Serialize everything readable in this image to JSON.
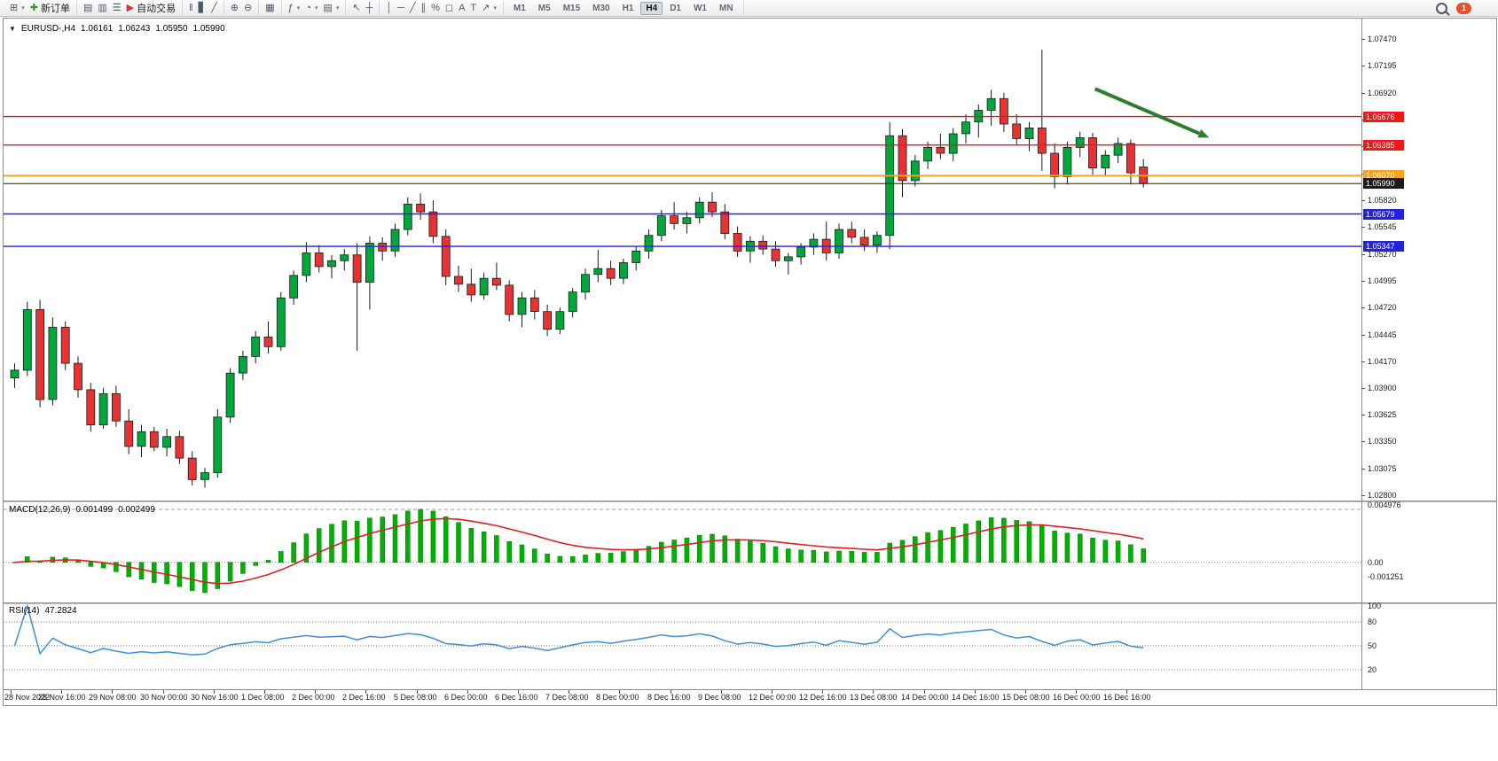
{
  "icons": {
    "expand_caret": "▼"
  },
  "header": {
    "symbol_period": "EURUSD-,H4",
    "open": "1.06161",
    "high": "1.06243",
    "low": "1.05950",
    "close": "1.05990"
  },
  "toolbar": {
    "groups": [
      {
        "name": "chart-group",
        "buttons": [
          {
            "name": "new-chart-button",
            "glyph": "⊞",
            "caret": true
          },
          {
            "name": "new-order-button",
            "glyph": "✚",
            "glyph_color": "#2a9d2a",
            "label": "新订单"
          }
        ]
      },
      {
        "name": "panels-group",
        "buttons": [
          {
            "name": "market-watch-button",
            "glyph": "▤"
          },
          {
            "name": "data-window-button",
            "glyph": "▥"
          },
          {
            "name": "navigator-button",
            "glyph": "☰"
          },
          {
            "name": "auto-trading-button",
            "glyph": "▶",
            "glyph_color": "#cc3a3a",
            "label": "自动交易"
          }
        ]
      },
      {
        "name": "chart-type-group",
        "buttons": [
          {
            "name": "ohlc-bars-button",
            "glyph": "‖"
          },
          {
            "name": "candlestick-button",
            "glyph": "▋"
          },
          {
            "name": "line-chart-button",
            "glyph": "╱"
          }
        ]
      },
      {
        "name": "zoom-group",
        "buttons": [
          {
            "name": "zoom-in-button",
            "glyph": "⊕"
          },
          {
            "name": "zoom-out-button",
            "glyph": "⊖"
          }
        ]
      },
      {
        "name": "window-group",
        "buttons": [
          {
            "name": "tile-windows-button",
            "glyph": "▦"
          }
        ]
      },
      {
        "name": "insert-group",
        "buttons": [
          {
            "name": "indicators-button",
            "glyph": "ƒ",
            "caret": true
          },
          {
            "name": "periods-button",
            "glyph": "◔",
            "caret": true
          },
          {
            "name": "templates-button",
            "glyph": "▤",
            "caret": true
          }
        ]
      },
      {
        "name": "pointer-group",
        "buttons": [
          {
            "name": "cursor-button",
            "glyph": "↖"
          },
          {
            "name": "crosshair-button",
            "glyph": "┼"
          }
        ]
      },
      {
        "name": "objects-group",
        "buttons": [
          {
            "name": "vertical-line-button",
            "glyph": "│"
          },
          {
            "name": "horizontal-line-button",
            "glyph": "─"
          },
          {
            "name": "trendline-button",
            "glyph": "╱"
          },
          {
            "name": "channel-button",
            "glyph": "∥"
          },
          {
            "name": "fibonacci-button",
            "glyph": "%"
          },
          {
            "name": "shapes-button",
            "glyph": "◻"
          },
          {
            "name": "text-button",
            "glyph": "A"
          },
          {
            "name": "text-label-button",
            "glyph": "T"
          },
          {
            "name": "arrows-button",
            "glyph": "↗",
            "caret": true
          }
        ]
      },
      {
        "name": "timeframe-group",
        "buttons": [
          {
            "name": "timeframe-m1-button",
            "label": "M1"
          },
          {
            "name": "timeframe-m5-button",
            "label": "M5"
          },
          {
            "name": "timeframe-m15-button",
            "label": "M15"
          },
          {
            "name": "timeframe-m30-button",
            "label": "M30"
          },
          {
            "name": "timeframe-h1-button",
            "label": "H1"
          },
          {
            "name": "timeframe-h4-button",
            "label": "H4",
            "active": true
          },
          {
            "name": "timeframe-d1-button",
            "label": "D1"
          },
          {
            "name": "timeframe-w1-button",
            "label": "W1"
          },
          {
            "name": "timeframe-mn-button",
            "label": "MN"
          }
        ]
      }
    ],
    "right": [
      {
        "name": "search-icon",
        "type": "magnifier"
      },
      {
        "name": "notification-badge",
        "type": "badge",
        "label": "1"
      }
    ]
  },
  "chart_data": {
    "type": "candlestick",
    "title": "EURUSD-,H4",
    "colors": {
      "bull": "#00a73c",
      "bear": "#e43434",
      "outline": "#1a1a1a",
      "macd_hist": "#00b200",
      "macd_signal": "#e02020",
      "rsi": "#3e8ede",
      "background": "#ffffff"
    },
    "price_axis_labels": [
      "1.07470",
      "1.07195",
      "1.06920",
      "1.06645",
      "1.06370",
      "1.06095",
      "1.05820",
      "1.05545",
      "1.05270",
      "1.04995",
      "1.04720",
      "1.04445",
      "1.04170",
      "1.03900",
      "1.03625",
      "1.03350",
      "1.03075",
      "1.02800"
    ],
    "time_axis_labels": [
      "28 Nov 2022",
      "28 Nov 16:00",
      "29 Nov 08:00",
      "30 Nov 00:00",
      "30 Nov 16:00",
      "1 Dec 08:00",
      "2 Dec 00:00",
      "2 Dec 16:00",
      "5 Dec 08:00",
      "6 Dec 00:00",
      "6 Dec 16:00",
      "7 Dec 08:00",
      "8 Dec 00:00",
      "8 Dec 16:00",
      "9 Dec 08:00",
      "12 Dec 00:00",
      "12 Dec 16:00",
      "13 Dec 08:00",
      "14 Dec 00:00",
      "14 Dec 16:00",
      "15 Dec 08:00",
      "16 Dec 00:00",
      "16 Dec 16:00"
    ],
    "candles": [
      [
        1.04,
        1.0415,
        1.039,
        1.0408
      ],
      [
        1.0408,
        1.0478,
        1.0402,
        1.047
      ],
      [
        1.047,
        1.048,
        1.037,
        1.0378
      ],
      [
        1.0378,
        1.0462,
        1.0372,
        1.0452
      ],
      [
        1.0452,
        1.0458,
        1.0408,
        1.0415
      ],
      [
        1.0415,
        1.0422,
        1.038,
        1.0388
      ],
      [
        1.0388,
        1.0395,
        1.0345,
        1.0352
      ],
      [
        1.0352,
        1.039,
        1.0348,
        1.0384
      ],
      [
        1.0384,
        1.0392,
        1.035,
        1.0356
      ],
      [
        1.0356,
        1.0368,
        1.0322,
        1.033
      ],
      [
        1.033,
        1.0352,
        1.0319,
        1.0345
      ],
      [
        1.0345,
        1.035,
        1.0325,
        1.0329
      ],
      [
        1.0329,
        1.0348,
        1.032,
        1.034
      ],
      [
        1.034,
        1.0346,
        1.0312,
        1.0318
      ],
      [
        1.0318,
        1.0325,
        1.029,
        1.0296
      ],
      [
        1.0296,
        1.0308,
        1.0288,
        1.0303
      ],
      [
        1.0303,
        1.0368,
        1.0298,
        1.036
      ],
      [
        1.036,
        1.041,
        1.0354,
        1.0405
      ],
      [
        1.0405,
        1.0428,
        1.0398,
        1.0422
      ],
      [
        1.0422,
        1.0448,
        1.0415,
        1.0442
      ],
      [
        1.0442,
        1.0458,
        1.0425,
        1.0432
      ],
      [
        1.0432,
        1.0488,
        1.0428,
        1.0482
      ],
      [
        1.0482,
        1.051,
        1.0475,
        1.0505
      ],
      [
        1.0505,
        1.0539,
        1.0498,
        1.0528
      ],
      [
        1.0528,
        1.0536,
        1.0508,
        1.0514
      ],
      [
        1.0514,
        1.0526,
        1.0502,
        1.052
      ],
      [
        1.052,
        1.0532,
        1.051,
        1.0526
      ],
      [
        1.0526,
        1.0538,
        1.0428,
        1.0498
      ],
      [
        1.0498,
        1.0545,
        1.047,
        1.0538
      ],
      [
        1.0538,
        1.0544,
        1.052,
        1.053
      ],
      [
        1.053,
        1.0558,
        1.0524,
        1.0552
      ],
      [
        1.0552,
        1.0585,
        1.0546,
        1.0578
      ],
      [
        1.0578,
        1.0589,
        1.0562,
        1.057
      ],
      [
        1.057,
        1.0582,
        1.0538,
        1.0545
      ],
      [
        1.0545,
        1.0552,
        1.0495,
        1.0504
      ],
      [
        1.0504,
        1.0515,
        1.0488,
        1.0496
      ],
      [
        1.0496,
        1.0512,
        1.0478,
        1.0485
      ],
      [
        1.0485,
        1.0508,
        1.048,
        1.0502
      ],
      [
        1.0502,
        1.0518,
        1.049,
        1.0495
      ],
      [
        1.0495,
        1.05,
        1.0458,
        1.0465
      ],
      [
        1.0465,
        1.0488,
        1.0452,
        1.0482
      ],
      [
        1.0482,
        1.049,
        1.046,
        1.0468
      ],
      [
        1.0468,
        1.0475,
        1.0443,
        1.045
      ],
      [
        1.045,
        1.0472,
        1.0445,
        1.0468
      ],
      [
        1.0468,
        1.0492,
        1.0462,
        1.0488
      ],
      [
        1.0488,
        1.0512,
        1.048,
        1.0506
      ],
      [
        1.0506,
        1.0531,
        1.0498,
        1.0512
      ],
      [
        1.0512,
        1.052,
        1.0495,
        1.0502
      ],
      [
        1.0502,
        1.0522,
        1.0496,
        1.0518
      ],
      [
        1.0518,
        1.0535,
        1.051,
        1.053
      ],
      [
        1.053,
        1.0552,
        1.0522,
        1.0546
      ],
      [
        1.0546,
        1.0572,
        1.054,
        1.0566
      ],
      [
        1.0566,
        1.058,
        1.0552,
        1.0558
      ],
      [
        1.0558,
        1.057,
        1.0548,
        1.0564
      ],
      [
        1.0564,
        1.0585,
        1.0558,
        1.058
      ],
      [
        1.058,
        1.059,
        1.0565,
        1.057
      ],
      [
        1.057,
        1.0578,
        1.0542,
        1.0548
      ],
      [
        1.0548,
        1.0555,
        1.0524,
        1.053
      ],
      [
        1.053,
        1.0545,
        1.0518,
        1.054
      ],
      [
        1.054,
        1.0546,
        1.0526,
        1.0532
      ],
      [
        1.0532,
        1.054,
        1.0514,
        1.052
      ],
      [
        1.052,
        1.0528,
        1.0506,
        1.0524
      ],
      [
        1.0524,
        1.0538,
        1.0516,
        1.0534
      ],
      [
        1.0534,
        1.0548,
        1.0526,
        1.0542
      ],
      [
        1.0542,
        1.056,
        1.052,
        1.0528
      ],
      [
        1.0528,
        1.0558,
        1.0522,
        1.0552
      ],
      [
        1.0552,
        1.056,
        1.0538,
        1.0544
      ],
      [
        1.0544,
        1.0552,
        1.053,
        1.0536
      ],
      [
        1.0536,
        1.055,
        1.0528,
        1.0546
      ],
      [
        1.0546,
        1.0662,
        1.0532,
        1.0648
      ],
      [
        1.0648,
        1.0655,
        1.0585,
        1.0602
      ],
      [
        1.0602,
        1.0628,
        1.0596,
        1.0622
      ],
      [
        1.0622,
        1.0642,
        1.0614,
        1.0636
      ],
      [
        1.0636,
        1.065,
        1.0624,
        1.063
      ],
      [
        1.063,
        1.0656,
        1.0622,
        1.065
      ],
      [
        1.065,
        1.067,
        1.064,
        1.0662
      ],
      [
        1.0662,
        1.068,
        1.0646,
        1.0674
      ],
      [
        1.0674,
        1.0695,
        1.0658,
        1.0686
      ],
      [
        1.0686,
        1.0692,
        1.0652,
        1.066
      ],
      [
        1.066,
        1.067,
        1.0638,
        1.0645
      ],
      [
        1.0645,
        1.0662,
        1.0632,
        1.0656
      ],
      [
        1.0656,
        1.0736,
        1.0612,
        1.063
      ],
      [
        1.063,
        1.064,
        1.0594,
        1.0606
      ],
      [
        1.0606,
        1.0642,
        1.0598,
        1.0636
      ],
      [
        1.0636,
        1.0652,
        1.0626,
        1.0646
      ],
      [
        1.0646,
        1.0651,
        1.0608,
        1.0615
      ],
      [
        1.0615,
        1.0633,
        1.0607,
        1.0628
      ],
      [
        1.0628,
        1.0646,
        1.062,
        1.064
      ],
      [
        1.064,
        1.0644,
        1.0598,
        1.061
      ],
      [
        1.0616,
        1.0624,
        1.0595,
        1.0599
      ]
    ],
    "hlines": [
      {
        "name": "resistance-line-1",
        "tag": "1.06676",
        "price": 1.06676,
        "color": "#f01818",
        "width": 1.4
      },
      {
        "name": "resistance-line-2",
        "tag": "1.06385",
        "price": 1.06385,
        "color": "#f01818",
        "width": 1.4
      },
      {
        "name": "orange-level-line",
        "tag": "1.06070",
        "price": 1.0607,
        "color": "#f5a21f",
        "width": 2
      },
      {
        "name": "bid-price-line",
        "tag": "1.05990",
        "price": 1.0599,
        "color": "#1c1c1c",
        "width": 1
      },
      {
        "name": "support-line-1",
        "tag": "1.05679",
        "price": 1.05679,
        "color": "#2222e0",
        "width": 1.4
      },
      {
        "name": "support-line-2",
        "tag": "1.05347",
        "price": 1.05347,
        "color": "#2222e0",
        "width": 1.4
      }
    ],
    "trend_arrow": {
      "name": "trend-arrow",
      "color": "#2d7d2d",
      "width": 4,
      "from": {
        "index": 85.5,
        "price": 1.0696
      },
      "to": {
        "index": 94.5,
        "price": 1.0646
      }
    },
    "macd": {
      "label": "MACD(12,26,9)",
      "value_main": "0.001499",
      "value_signal": "0.002499",
      "params": [
        12,
        26,
        9
      ],
      "axis": [
        {
          "text": "0.004976",
          "value": 0.004976
        },
        {
          "text": "0.00",
          "value": 0
        },
        {
          "text": "-0.001251",
          "value": -0.001251
        }
      ]
    },
    "rsi": {
      "label": "RSI(14)",
      "value": "47.2824",
      "period": 14,
      "levels": [
        80,
        50,
        20
      ],
      "axis": [
        {
          "text": "100",
          "value": 100
        },
        {
          "text": "80",
          "value": 80
        },
        {
          "text": "50",
          "value": 50
        },
        {
          "text": "20",
          "value": 20
        }
      ]
    }
  }
}
